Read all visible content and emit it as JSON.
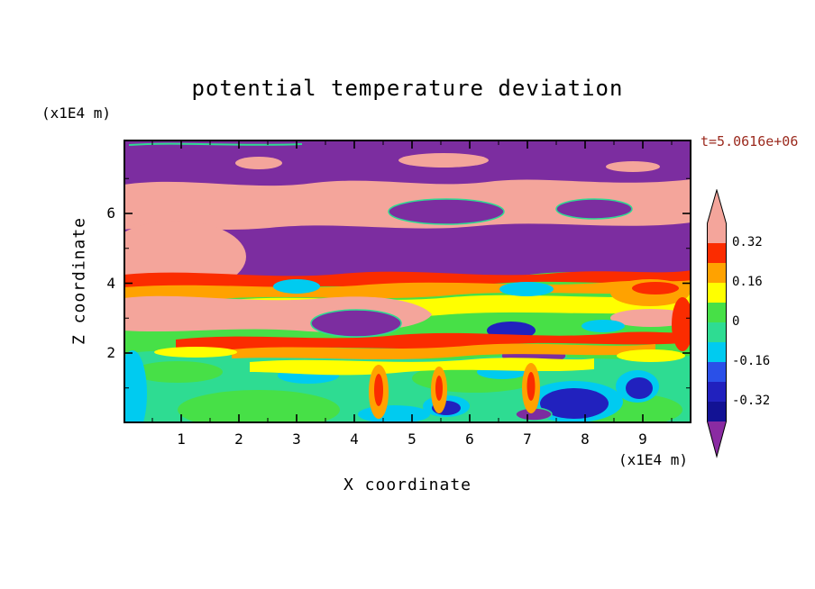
{
  "title": "potential temperature deviation",
  "time_label": "t=5.0616e+06",
  "axes": {
    "x": {
      "label": "X coordinate",
      "unit": "(x1E4 m)",
      "ticks": [
        "1",
        "2",
        "3",
        "4",
        "5",
        "6",
        "7",
        "8",
        "9"
      ]
    },
    "y": {
      "label": "Z coordinate",
      "unit": "(x1E4 m)",
      "ticks": [
        "6",
        "4",
        "2"
      ]
    }
  },
  "palette": {
    "purple": "#7c2da0",
    "violet": "#8a2ba2",
    "salmon": "#f4a59b",
    "red": "#fb2c00",
    "orange": "#ffa200",
    "yellow": "#ffff00",
    "green": "#47e047",
    "spring": "#2edc92",
    "cyan": "#00cbf0",
    "blue": "#2a50e8",
    "navy": "#2121be",
    "deepnavy": "#121294"
  },
  "colorbar": {
    "labels": [
      "0.32",
      "0.16",
      "0",
      "-0.16",
      "-0.32"
    ],
    "arrow_top": "salmon",
    "arrow_bottom": "violet",
    "segments_top_to_bottom": [
      "salmon",
      "red",
      "orange",
      "yellow",
      "green",
      "spring",
      "cyan",
      "blue",
      "navy",
      "deepnavy"
    ]
  },
  "chart_data": {
    "type": "heatmap",
    "title": "potential temperature deviation",
    "xlabel": "X coordinate (x1E4 m)",
    "ylabel": "Z coordinate (x1E4 m)",
    "x_ticks": [
      1,
      2,
      3,
      4,
      5,
      6,
      7,
      8,
      9
    ],
    "y_ticks": [
      2,
      4,
      6
    ],
    "annotation": "t=5.0616e+06",
    "legend_position": "right",
    "grid": false,
    "colorbar_levels": [
      -0.32,
      -0.16,
      0,
      0.16,
      0.32
    ],
    "colorbar_colors_low_to_high": [
      "#8a2ba2",
      "#121294",
      "#2121be",
      "#2a50e8",
      "#00cbf0",
      "#2edc92",
      "#47e047",
      "#ffff00",
      "#ffa200",
      "#fb2c00",
      "#f4a59b"
    ],
    "description": "Filled contour field: large-amplitude alternating positive (salmon, >0.32) and negative (purple, <-0.32) wavy layers aloft (z > ~2.5x1E4 m); thin red/orange/yellow streaks in mid-levels; near-zero (green/teal) values in the lower layer with cyan patches, warm orange-red plumes near x=4.4, 5.3, 6.1 and cold dark-blue pockets near x=6.5-7.2 and x=8.8."
  }
}
